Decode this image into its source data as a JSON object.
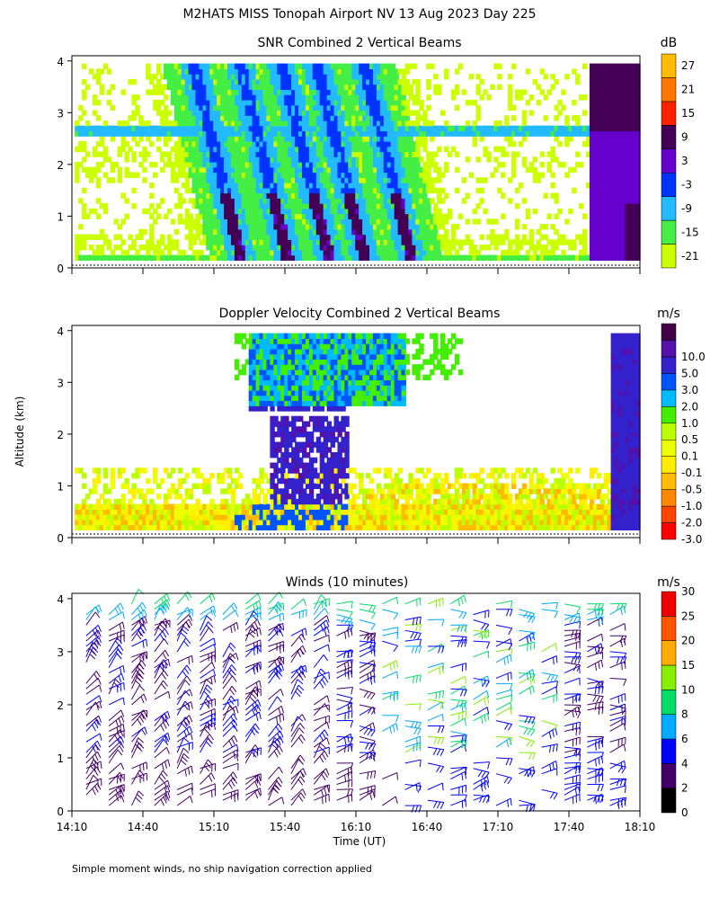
{
  "title": "M2HATS MISS Tonopah Airport NV  13 Aug 2023 Day 225",
  "footnote": "Simple moment winds, no ship navigation correction applied",
  "colors": {
    "snr": [
      "#ccff00",
      "#44ee44",
      "#22bbff",
      "#0033ff",
      "#6600cc",
      "#440055",
      "#ff2200",
      "#ff7700",
      "#ffbb00"
    ],
    "vel": [
      "#ff0000",
      "#ff4400",
      "#ff8800",
      "#ffbb00",
      "#ffee00",
      "#eeff00",
      "#bbff00",
      "#44ee00",
      "#00bbff",
      "#0055ff",
      "#3322cc",
      "#5511aa",
      "#440044"
    ],
    "wind": [
      "#000000",
      "#440066",
      "#0000ff",
      "#00aaff",
      "#00dd66",
      "#88ee00",
      "#ffaa00",
      "#ff5500",
      "#ee0000"
    ]
  },
  "chart_data": [
    {
      "type": "heatmap",
      "title": "SNR Combined 2 Vertical Beams",
      "ylabel": "Altitude (km)",
      "ylim": [
        0,
        4.1
      ],
      "yticks": [
        "0",
        "1",
        "2",
        "3",
        "4"
      ],
      "xlim": [
        "14:10",
        "18:10"
      ],
      "colorbar": {
        "unit": "dB",
        "labels": [
          "-21",
          "-15",
          "-9",
          "-3",
          "3",
          "9",
          "15",
          "21",
          "27"
        ]
      }
    },
    {
      "type": "heatmap",
      "title": "Doppler Velocity Combined 2 Vertical Beams",
      "ylabel": "Altitude (km)",
      "ylim": [
        0,
        4.1
      ],
      "yticks": [
        "0",
        "1",
        "2",
        "3",
        "4"
      ],
      "xlim": [
        "14:10",
        "18:10"
      ],
      "colorbar": {
        "unit": "m/s",
        "labels": [
          "-3.0",
          "-2.0",
          "-1.0",
          "-0.5",
          "-0.1",
          "0.1",
          "0.5",
          "1.0",
          "2.0",
          "3.0",
          "5.0",
          "10.0"
        ]
      }
    },
    {
      "type": "scatter",
      "title": "Winds (10 minutes)",
      "xlabel": "Time (UT)",
      "ylabel": "Altitude (km)",
      "ylim": [
        0,
        4.1
      ],
      "yticks": [
        "0",
        "1",
        "2",
        "3",
        "4"
      ],
      "xticks": [
        "14:10",
        "14:40",
        "15:10",
        "15:40",
        "16:10",
        "16:40",
        "17:10",
        "17:40",
        "18:10"
      ],
      "colorbar": {
        "unit": "m/s",
        "labels": [
          "0",
          "2",
          "4",
          "6",
          "8",
          "10",
          "15",
          "20",
          "25",
          "30"
        ]
      }
    }
  ]
}
